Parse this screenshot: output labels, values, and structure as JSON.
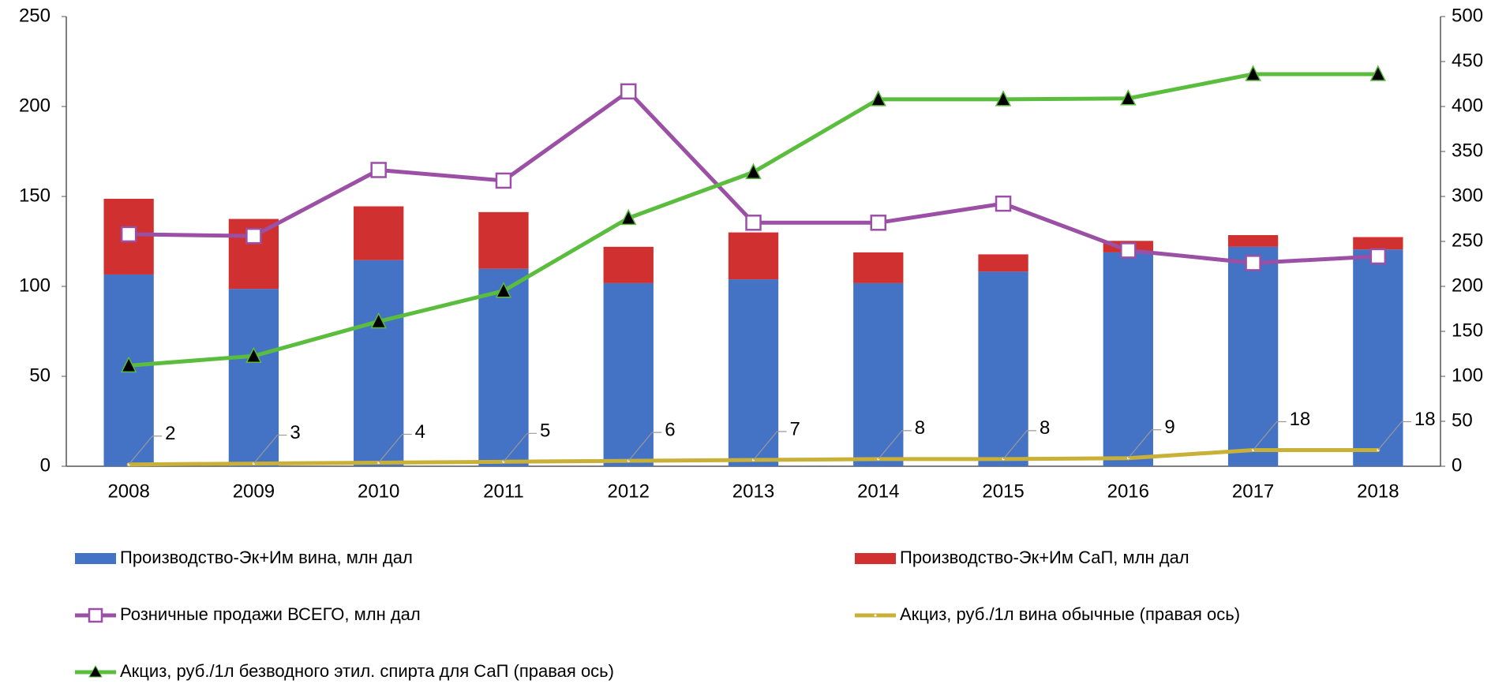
{
  "chart_data": {
    "type": "bar",
    "stacked": true,
    "categories": [
      "2008",
      "2009",
      "2010",
      "2011",
      "2012",
      "2013",
      "2014",
      "2015",
      "2016",
      "2017",
      "2018"
    ],
    "ylim": [
      0,
      250
    ],
    "yticks": [
      0,
      50,
      100,
      150,
      200,
      250
    ],
    "y2lim": [
      0,
      500
    ],
    "y2ticks": [
      0,
      50,
      100,
      150,
      200,
      250,
      300,
      350,
      400,
      450,
      500
    ],
    "series": [
      {
        "name": "Производство-Эк+Им вина, млн дал",
        "type": "bar",
        "color": "#4472c4",
        "values": [
          106.6,
          98.6,
          114.6,
          109.8,
          101.8,
          103.9,
          101.8,
          108.2,
          118.9,
          122,
          120.5
        ]
      },
      {
        "name": "Производство-Эк+Им СаП, млн дал",
        "type": "bar",
        "color": "#d0302f",
        "values": [
          42.1,
          38.9,
          29.9,
          31.5,
          20.2,
          26.1,
          17.1,
          9.6,
          6.4,
          6.5,
          6.9
        ]
      },
      {
        "name": "Розничные продажи ВСЕГО, млн дал",
        "type": "line",
        "marker": "square",
        "color": "#9b4fa5",
        "values": [
          129,
          128,
          164.7,
          158.8,
          208.4,
          135.4,
          135.4,
          146,
          120,
          113,
          116.7
        ]
      },
      {
        "name": "Акциз, руб./1л вина обычные (правая ось)",
        "type": "line",
        "marker": "dot",
        "axis": "y2",
        "color": "#c9b037",
        "data_labels": true,
        "values": [
          2,
          3,
          4,
          5,
          6,
          7,
          8,
          8,
          9,
          18,
          18
        ]
      },
      {
        "name": "Акциз, руб./1л безводного этил. спирта для СаП (правая ось)",
        "type": "line",
        "marker": "triangle",
        "axis": "y2",
        "color": "#5bbd3d",
        "values": [
          112,
          122.6,
          161,
          195,
          276,
          327,
          408,
          408,
          409,
          436,
          436
        ]
      }
    ]
  }
}
